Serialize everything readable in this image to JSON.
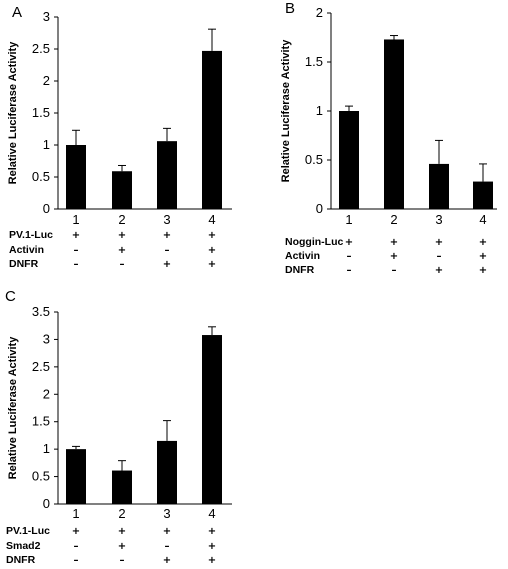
{
  "chart_data": [
    {
      "type": "bar",
      "panel": "A",
      "ylabel": "Relative Luciferase Activity",
      "ylim": [
        0,
        3
      ],
      "yticks": [
        "0",
        "0.5",
        "1",
        "1.5",
        "2",
        "2.5",
        "3"
      ],
      "categories": [
        "1",
        "2",
        "3",
        "4"
      ],
      "values": [
        1.0,
        0.59,
        1.06,
        2.47
      ],
      "errors": [
        0.23,
        0.09,
        0.2,
        0.34
      ],
      "color": "#000000",
      "conditions": [
        {
          "label": "PV.1-Luc",
          "signs": [
            "+",
            "+",
            "+",
            "+"
          ]
        },
        {
          "label": "Activin",
          "signs": [
            "–",
            "+",
            "–",
            "+"
          ]
        },
        {
          "label": "DNFR",
          "signs": [
            "–",
            "–",
            "+",
            "+"
          ]
        }
      ]
    },
    {
      "type": "bar",
      "panel": "B",
      "ylabel": "Relative Luciferase Activity",
      "ylim": [
        0,
        2
      ],
      "yticks": [
        "0",
        "0.5",
        "1",
        "1.5",
        "2"
      ],
      "categories": [
        "1",
        "2",
        "3",
        "4"
      ],
      "values": [
        1.0,
        1.73,
        0.46,
        0.28
      ],
      "errors": [
        0.05,
        0.04,
        0.24,
        0.18
      ],
      "color": "#000000",
      "conditions": [
        {
          "label": "Noggin-Luc",
          "signs": [
            "+",
            "+",
            "+",
            "+"
          ]
        },
        {
          "label": "Activin",
          "signs": [
            "–",
            "+",
            "–",
            "+"
          ]
        },
        {
          "label": "DNFR",
          "signs": [
            "–",
            "–",
            "+",
            "+"
          ]
        }
      ]
    },
    {
      "type": "bar",
      "panel": "C",
      "ylabel": "Relative Luciferase Activity",
      "ylim": [
        0,
        3.5
      ],
      "yticks": [
        "0",
        "0.5",
        "1",
        "1.5",
        "2",
        "2.5",
        "3",
        "3.5"
      ],
      "categories": [
        "1",
        "2",
        "3",
        "4"
      ],
      "values": [
        1.0,
        0.61,
        1.15,
        3.08
      ],
      "errors": [
        0.05,
        0.18,
        0.37,
        0.15
      ],
      "color": "#000000",
      "conditions": [
        {
          "label": "PV.1-Luc",
          "signs": [
            "+",
            "+",
            "+",
            "+"
          ]
        },
        {
          "label": "Smad2",
          "signs": [
            "–",
            "+",
            "–",
            "+"
          ]
        },
        {
          "label": "DNFR",
          "signs": [
            "–",
            "–",
            "+",
            "+"
          ]
        }
      ]
    }
  ]
}
